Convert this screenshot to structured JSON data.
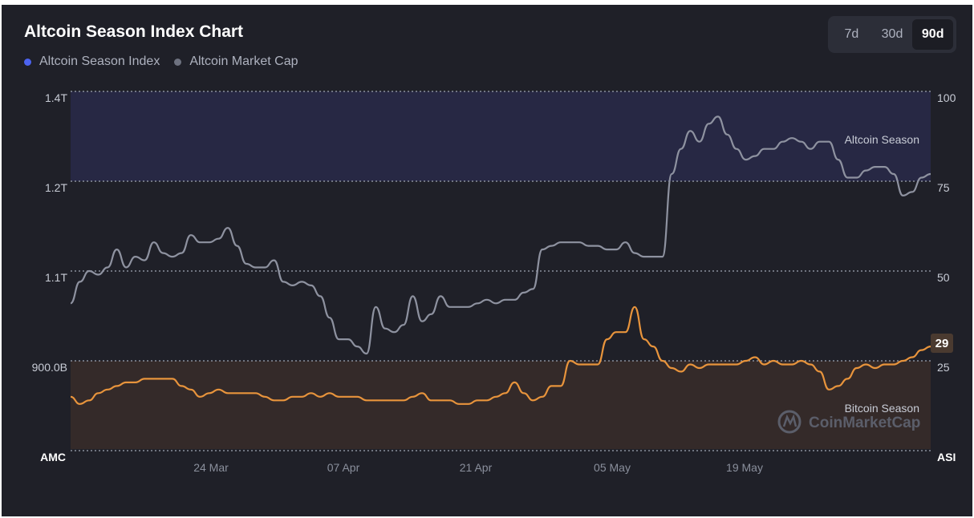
{
  "header": {
    "title": "Altcoin Season Index Chart"
  },
  "legend": [
    {
      "label": "Altcoin Season Index",
      "color": "#4c63f0"
    },
    {
      "label": "Altcoin Market Cap",
      "color": "#6e7280"
    }
  ],
  "range_toggle": {
    "options": [
      "7d",
      "30d",
      "90d"
    ],
    "selected": "90d"
  },
  "watermark": "CoinMarketCap",
  "chart_data": {
    "type": "line",
    "left_axis": {
      "label": "AMC",
      "ticks": [
        "1.4T",
        "1.2T",
        "1.1T",
        "900.0B"
      ]
    },
    "right_axis": {
      "label": "ASI",
      "ticks": [
        "100",
        "75",
        "50",
        "25"
      ],
      "ylim": [
        0,
        100
      ]
    },
    "x_ticks": [
      "24 Mar",
      "07 Apr",
      "21 Apr",
      "05 May",
      "19 May"
    ],
    "zones": [
      {
        "label": "Altcoin Season",
        "from": 75,
        "to": 100
      },
      {
        "label": "Bitcoin Season",
        "from": 0,
        "to": 25
      }
    ],
    "current_value": "29",
    "grid": "horizontal-dotted",
    "series": [
      {
        "name": "Altcoin Market Cap",
        "axis": "right",
        "color": "#8e92a0",
        "values": [
          41,
          47,
          50,
          49,
          51,
          56,
          51,
          54,
          53,
          58,
          55,
          54,
          55,
          60,
          58,
          58,
          59,
          62,
          57,
          52,
          51,
          51,
          53,
          47,
          46,
          47,
          46,
          43,
          37,
          31,
          31,
          29,
          27,
          40,
          34,
          33,
          35,
          43,
          36,
          38,
          43,
          40,
          40,
          40,
          41,
          42,
          41,
          42,
          42,
          44,
          45,
          56,
          57,
          58,
          58,
          58,
          57,
          57,
          56,
          56,
          58,
          55,
          54,
          54,
          54,
          77,
          84,
          89,
          86,
          91,
          93,
          88,
          84,
          81,
          82,
          84,
          84,
          86,
          87,
          86,
          84,
          86,
          86,
          81,
          76,
          76,
          78,
          79,
          79,
          77,
          71,
          72,
          76,
          77
        ]
      },
      {
        "name": "Altcoin Season Index",
        "axis": "right",
        "color": "#e8943c",
        "values": [
          15,
          13,
          14,
          16,
          17,
          18,
          19,
          19,
          20,
          20,
          20,
          20,
          18,
          17,
          15,
          16,
          17,
          16,
          16,
          16,
          16,
          15,
          14,
          14,
          15,
          15,
          16,
          15,
          16,
          15,
          15,
          15,
          14,
          14,
          14,
          14,
          14,
          15,
          16,
          14,
          14,
          14,
          13,
          13,
          14,
          14,
          15,
          16,
          19,
          16,
          14,
          15,
          18,
          18,
          25,
          24,
          24,
          24,
          31,
          33,
          33,
          40,
          31,
          29,
          25,
          23,
          22,
          24,
          23,
          24,
          24,
          24,
          24,
          25,
          26,
          24,
          25,
          24,
          24,
          25,
          24,
          22,
          17,
          18,
          20,
          23,
          24,
          23,
          24,
          24,
          25,
          26,
          28,
          29
        ]
      }
    ]
  }
}
